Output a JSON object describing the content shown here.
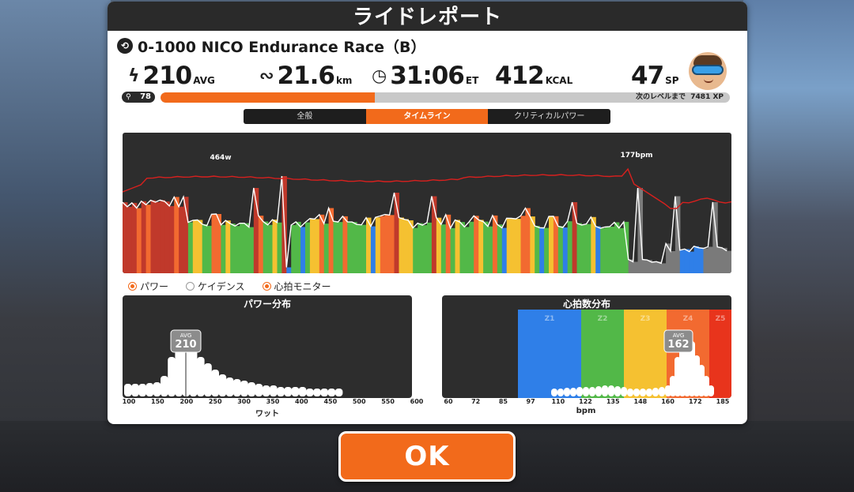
{
  "header": {
    "title": "ライドレポート"
  },
  "race": {
    "route_icon": "route-icon",
    "title": "0-1000  NICO Endurance Race（B）"
  },
  "stats": {
    "power": {
      "icon": "lightning-icon",
      "value": "210",
      "unit": "AVG"
    },
    "distance": {
      "icon": "route-distance-icon",
      "value": "21.6",
      "unit": "km"
    },
    "time": {
      "icon": "clock-icon",
      "value": "31:06",
      "unit": "ET"
    },
    "calories": {
      "value": "412",
      "unit": "KCAL"
    },
    "sp": {
      "value": "47",
      "unit": "SP"
    }
  },
  "level": {
    "value": "78",
    "progress": 0.376,
    "next_text": "次のレベルまで",
    "xp": "7481 XP"
  },
  "tabs": [
    {
      "label": "全般",
      "active": false
    },
    {
      "label": "タイムライン",
      "active": true
    },
    {
      "label": "クリティカルパワー",
      "active": false
    }
  ],
  "timeline": {
    "peak_power_label": "464w",
    "peak_hr_label": "177bpm"
  },
  "legend": [
    {
      "label": "パワー",
      "on": true
    },
    {
      "label": "ケイデンス",
      "on": false
    },
    {
      "label": "心拍モニター",
      "on": true
    }
  ],
  "power_hist": {
    "title": "パワー分布",
    "avg_label": "AVG",
    "avg_value": "210",
    "ticks": [
      "100",
      "150",
      "200",
      "250",
      "300",
      "350",
      "400",
      "450",
      "500",
      "550",
      "600"
    ],
    "xlabel": "ワット"
  },
  "hr_hist": {
    "title": "心拍数分布",
    "avg_label": "AVG",
    "avg_value": "162",
    "zones": [
      "Z1",
      "Z2",
      "Z3",
      "Z4",
      "Z5"
    ],
    "ticks": [
      "60",
      "72",
      "85",
      "97",
      "110",
      "122",
      "135",
      "148",
      "160",
      "172",
      "185"
    ],
    "xlabel": "bpm"
  },
  "colors": {
    "accent": "#f26a1b",
    "z1": "#2f7fe8",
    "z2": "#52b848",
    "z3": "#f5c131",
    "z4": "#f26a30",
    "z5": "#e8341c"
  },
  "ok_button": {
    "label": "OK"
  }
}
